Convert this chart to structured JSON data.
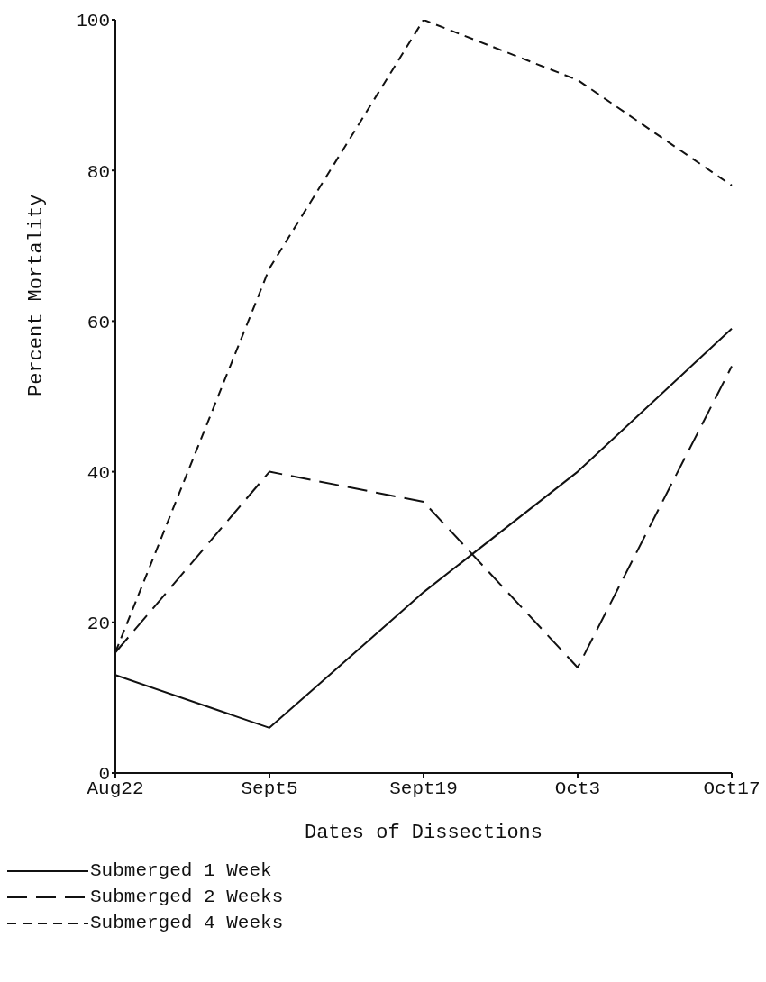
{
  "chart_data": {
    "type": "line",
    "xlabel": "Dates of Dissections",
    "ylabel": "Percent   Mortality",
    "categories": [
      "Aug22",
      "Sept5",
      "Sept19",
      "Oct3",
      "Oct17"
    ],
    "series": [
      {
        "name": "Submerged 1 Week",
        "color": "#111111",
        "values": [
          13,
          6,
          24,
          40,
          59
        ],
        "line_style": "solid"
      },
      {
        "name": "Submerged 2 Weeks",
        "color": "#111111",
        "values": [
          16,
          40,
          36,
          14,
          54
        ],
        "line_style": "dashed"
      },
      {
        "name": "Submerged 4 Weeks",
        "color": "#111111",
        "values": [
          16,
          67,
          100,
          92,
          78
        ],
        "line_style": "dashed"
      }
    ],
    "ylim": [
      0,
      100
    ],
    "yticks": [
      0,
      20,
      40,
      60,
      80,
      100
    ],
    "grid": false,
    "legend": "bottom left",
    "marker": "none"
  }
}
